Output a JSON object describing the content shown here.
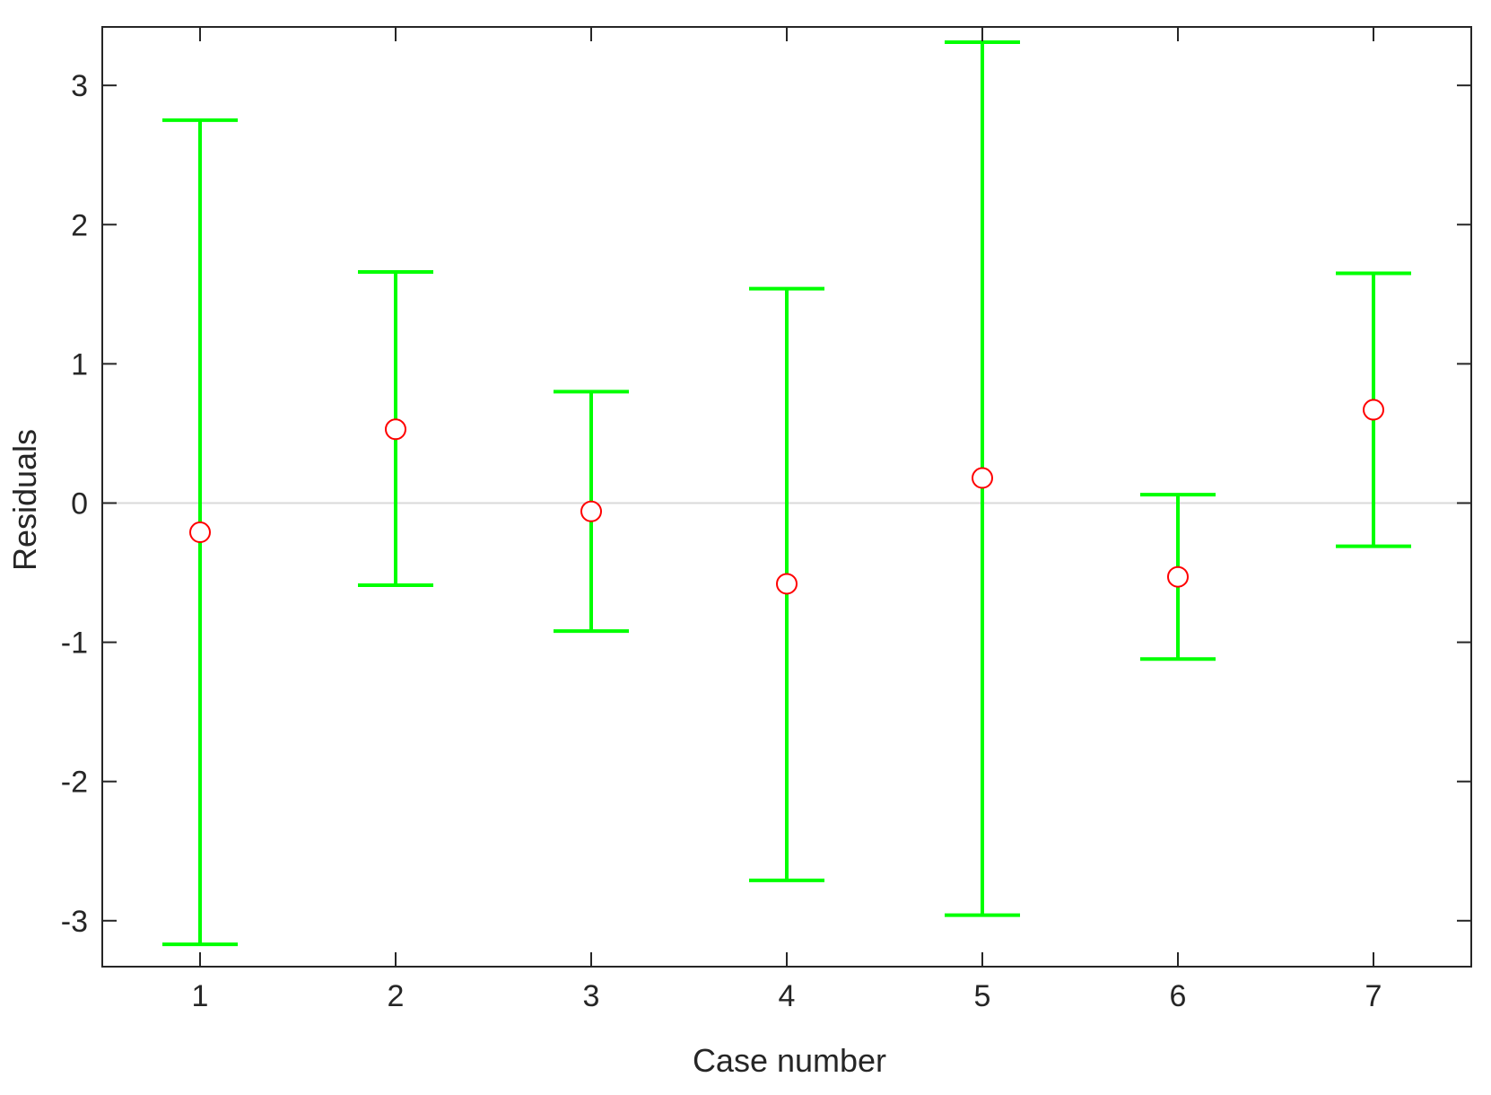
{
  "chart_data": {
    "type": "scatter",
    "subtype": "errorbar",
    "title": "",
    "xlabel": "Case number",
    "ylabel": "Residuals",
    "xlim": [
      0.5,
      7.5
    ],
    "ylim": [
      -3.33,
      3.42
    ],
    "xticks": [
      1,
      2,
      3,
      4,
      5,
      6,
      7
    ],
    "yticks": [
      -3,
      -2,
      -1,
      0,
      1,
      2,
      3
    ],
    "grid": false,
    "legend": "none",
    "points": [
      {
        "x": 1,
        "y": -0.21,
        "lower": -3.17,
        "upper": 2.75
      },
      {
        "x": 2,
        "y": 0.53,
        "lower": -0.59,
        "upper": 1.66
      },
      {
        "x": 3,
        "y": -0.06,
        "lower": -0.92,
        "upper": 0.8
      },
      {
        "x": 4,
        "y": -0.58,
        "lower": -2.71,
        "upper": 1.54
      },
      {
        "x": 5,
        "y": 0.18,
        "lower": -2.96,
        "upper": 3.31
      },
      {
        "x": 6,
        "y": -0.53,
        "lower": -1.12,
        "upper": 0.06
      },
      {
        "x": 7,
        "y": 0.67,
        "lower": -0.31,
        "upper": 1.65
      }
    ],
    "colors": {
      "marker": "#ff0000",
      "errorbar": "#00ff00",
      "axis": "#262626",
      "zero_line": "#d9d9d9"
    }
  }
}
